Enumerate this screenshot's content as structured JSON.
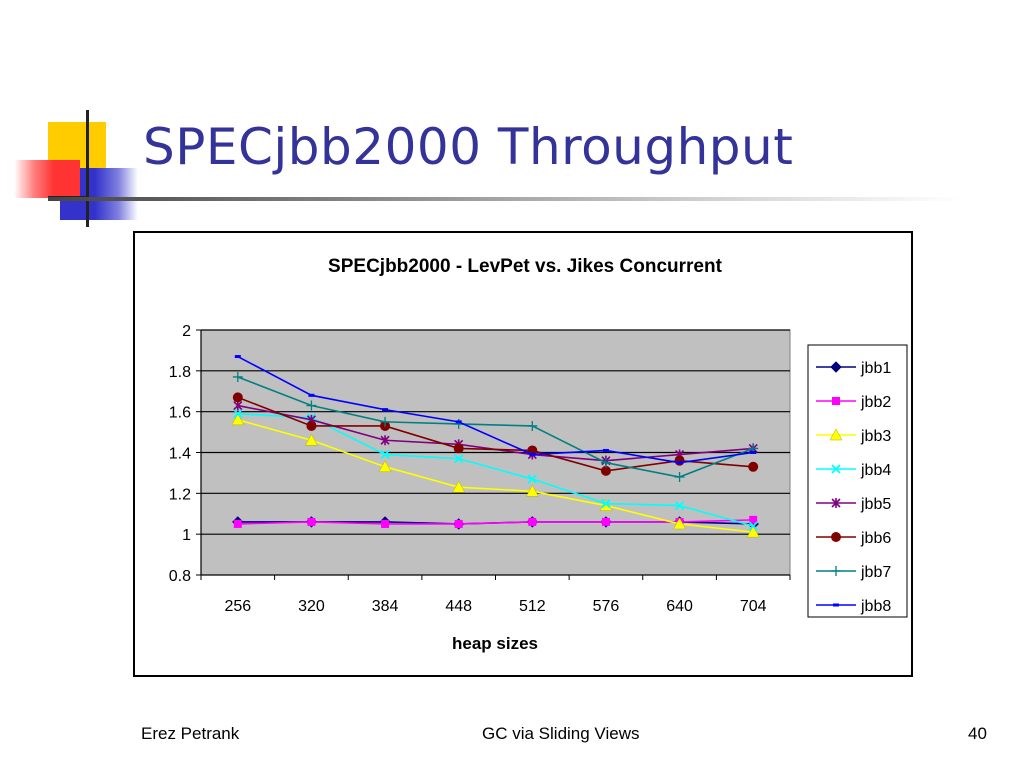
{
  "slide": {
    "title": "SPECjbb2000 Throughput",
    "footer_left": "Erez Petrank",
    "footer_center": "GC via Sliding Views",
    "footer_right": "40"
  },
  "colors": {
    "title": "#333399",
    "plot_area": "#c0c0c0",
    "deco_yellow": "#ffcc00",
    "deco_red": "#ff3333",
    "deco_blue": "#3333cc"
  },
  "chart_data": {
    "type": "line",
    "title": "SPECjbb2000 - LevPet vs. Jikes Concurrent",
    "xlabel": "heap sizes",
    "ylabel": "",
    "categories": [
      "256",
      "320",
      "384",
      "448",
      "512",
      "576",
      "640",
      "704"
    ],
    "ylim": [
      0.8,
      2
    ],
    "yticks": [
      "0.8",
      "1",
      "1.2",
      "1.4",
      "1.6",
      "1.8",
      "2"
    ],
    "grid": true,
    "legend_position": "right",
    "series": [
      {
        "name": "jbb1",
        "color": "#000080",
        "marker": "diamond",
        "values": [
          1.06,
          1.06,
          1.06,
          1.05,
          1.06,
          1.06,
          1.06,
          1.05
        ]
      },
      {
        "name": "jbb2",
        "color": "#ff00ff",
        "marker": "square",
        "values": [
          1.05,
          1.06,
          1.05,
          1.05,
          1.06,
          1.06,
          1.06,
          1.07
        ]
      },
      {
        "name": "jbb3",
        "color": "#ffff00",
        "marker": "triangle",
        "values": [
          1.56,
          1.46,
          1.33,
          1.23,
          1.21,
          1.14,
          1.05,
          1.01
        ]
      },
      {
        "name": "jbb4",
        "color": "#00ffff",
        "marker": "x",
        "values": [
          1.59,
          1.57,
          1.39,
          1.37,
          1.27,
          1.15,
          1.14,
          1.04
        ]
      },
      {
        "name": "jbb5",
        "color": "#800080",
        "marker": "star",
        "values": [
          1.63,
          1.56,
          1.46,
          1.44,
          1.39,
          1.36,
          1.39,
          1.42
        ]
      },
      {
        "name": "jbb6",
        "color": "#800000",
        "marker": "circle",
        "values": [
          1.67,
          1.53,
          1.53,
          1.42,
          1.41,
          1.31,
          1.36,
          1.33
        ]
      },
      {
        "name": "jbb7",
        "color": "#008080",
        "marker": "plus",
        "values": [
          1.77,
          1.63,
          1.55,
          1.54,
          1.53,
          1.35,
          1.28,
          1.42
        ]
      },
      {
        "name": "jbb8",
        "color": "#0000ff",
        "marker": "dash",
        "values": [
          1.87,
          1.68,
          1.61,
          1.55,
          1.39,
          1.41,
          1.35,
          1.4
        ]
      }
    ]
  }
}
